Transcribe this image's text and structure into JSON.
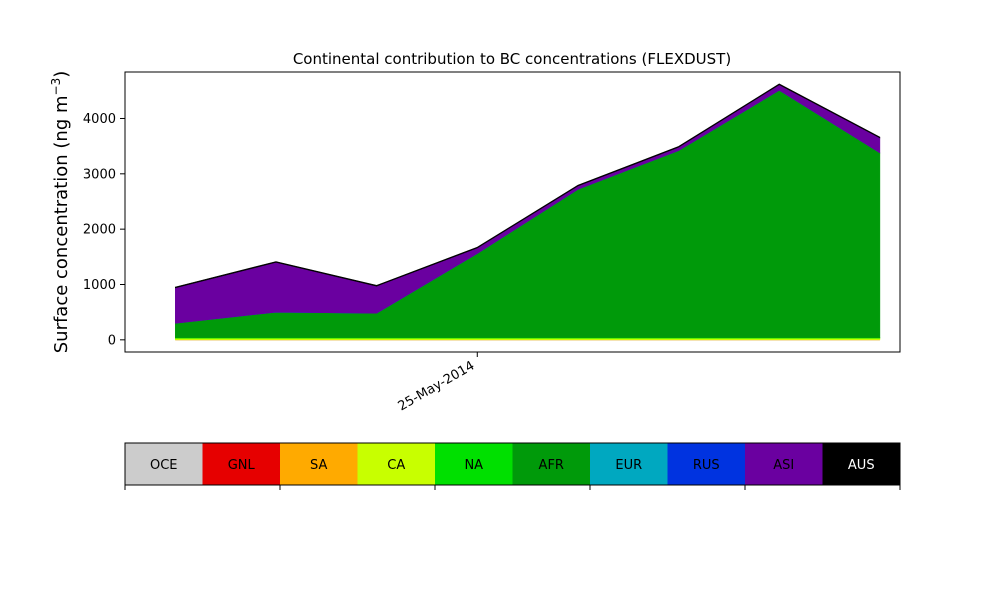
{
  "chart_data": {
    "type": "area",
    "title": "Continental contribution to BC concentrations (FLEXDUST)",
    "ylabel_main": "Surface concentration (ng m",
    "ylabel_sup": "−3",
    "ylabel_close": ")",
    "xlabel": "",
    "stacked": true,
    "x": [
      0,
      1,
      2,
      3,
      4,
      5,
      6,
      7
    ],
    "xlim": [
      -0.5,
      7.2
    ],
    "ylim": [
      -220,
      4840
    ],
    "yticks": [
      0,
      1000,
      2000,
      3000,
      4000
    ],
    "ytick_labels": [
      "0",
      "1000",
      "2000",
      "3000",
      "4000"
    ],
    "xticks": [
      {
        "x": 3,
        "label": "25-May-2014"
      }
    ],
    "grid": false,
    "series": [
      {
        "name": "OCE",
        "color": "#cccccc",
        "values": [
          0,
          0,
          0,
          0,
          0,
          0,
          0,
          0
        ]
      },
      {
        "name": "GNL",
        "color": "#e60000",
        "values": [
          0,
          0,
          0,
          0,
          0,
          0,
          0,
          0
        ]
      },
      {
        "name": "SA",
        "color": "#ffaa00",
        "values": [
          0,
          0,
          0,
          0,
          0,
          0,
          0,
          0
        ]
      },
      {
        "name": "CA",
        "color": "#c8ff00",
        "values": [
          30,
          30,
          30,
          30,
          30,
          30,
          30,
          30
        ]
      },
      {
        "name": "NA",
        "color": "#00e000",
        "values": [
          10,
          10,
          10,
          10,
          10,
          10,
          10,
          10
        ]
      },
      {
        "name": "AFR",
        "color": "#009a0a",
        "values": [
          260,
          460,
          440,
          1520,
          2680,
          3380,
          4470,
          3340
        ]
      },
      {
        "name": "EUR",
        "color": "#00a8c0",
        "values": [
          0,
          0,
          0,
          0,
          0,
          0,
          0,
          0
        ]
      },
      {
        "name": "RUS",
        "color": "#0033e0",
        "values": [
          0,
          0,
          0,
          0,
          0,
          0,
          0,
          0
        ]
      },
      {
        "name": "ASI",
        "color": "#6a00a0",
        "values": [
          640,
          900,
          490,
          100,
          60,
          60,
          100,
          270
        ]
      },
      {
        "name": "AUS",
        "color": "#000000",
        "values": [
          15,
          15,
          15,
          15,
          15,
          15,
          15,
          15
        ]
      }
    ]
  }
}
